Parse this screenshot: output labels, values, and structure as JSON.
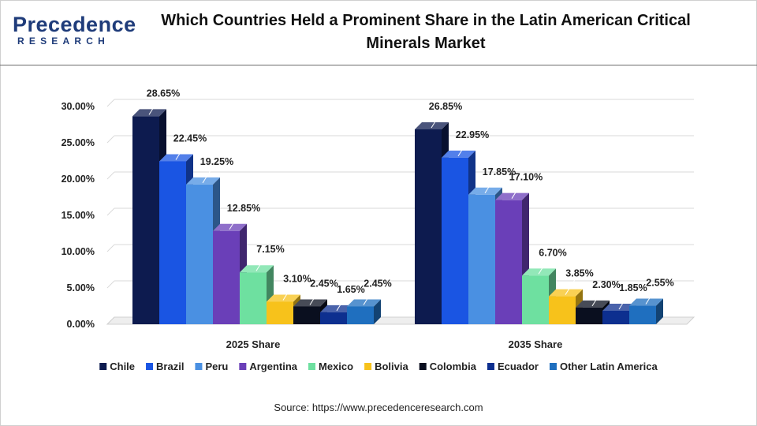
{
  "header": {
    "logo_text": "Precedence",
    "logo_subtext": "RESEARCH",
    "title": "Which Countries Held a Prominent Share in the Latin American Critical Minerals Market"
  },
  "footer": {
    "source": "Source: https://www.precedenceresearch.com"
  },
  "chart_data": {
    "type": "bar",
    "title": "Which Countries Held a Prominent Share in the Latin American Critical Minerals Market",
    "categories": [
      "2025 Share",
      "2035 Share"
    ],
    "ylim": [
      0,
      30
    ],
    "y_ticks": [
      "0.00%",
      "5.00%",
      "10.00%",
      "15.00%",
      "20.00%",
      "25.00%",
      "30.00%"
    ],
    "grid": true,
    "legend_position": "bottom",
    "style": "3d-clustered-column",
    "series": [
      {
        "name": "Chile",
        "values": [
          28.65,
          26.85
        ],
        "labels": [
          "28.65%",
          "26.85%"
        ],
        "color": "#0d1b4f"
      },
      {
        "name": "Brazil",
        "values": [
          22.45,
          22.95
        ],
        "labels": [
          "22.45%",
          "22.95%"
        ],
        "color": "#1a55e3"
      },
      {
        "name": "Peru",
        "values": [
          19.25,
          17.85
        ],
        "labels": [
          "19.25%",
          "17.85%"
        ],
        "color": "#4a90e2"
      },
      {
        "name": "Argentina",
        "values": [
          12.85,
          17.1
        ],
        "labels": [
          "12.85%",
          "17.10%"
        ],
        "color": "#6a3fb8"
      },
      {
        "name": "Mexico",
        "values": [
          7.15,
          6.7
        ],
        "labels": [
          "7.15%",
          "6.70%"
        ],
        "color": "#6ee0a0"
      },
      {
        "name": "Bolivia",
        "values": [
          3.1,
          3.85
        ],
        "labels": [
          "3.10%",
          "3.85%"
        ],
        "color": "#f7c21b"
      },
      {
        "name": "Colombia",
        "values": [
          2.45,
          2.3
        ],
        "labels": [
          "2.45%",
          "2.30%"
        ],
        "color": "#0a0f1f"
      },
      {
        "name": "Ecuador",
        "values": [
          1.65,
          1.85
        ],
        "labels": [
          "1.65%",
          "1.85%"
        ],
        "color": "#0d2f8f"
      },
      {
        "name": "Other Latin America",
        "values": [
          2.45,
          2.55
        ],
        "labels": [
          "2.45%",
          "2.55%"
        ],
        "color": "#1f6fbf"
      }
    ]
  }
}
